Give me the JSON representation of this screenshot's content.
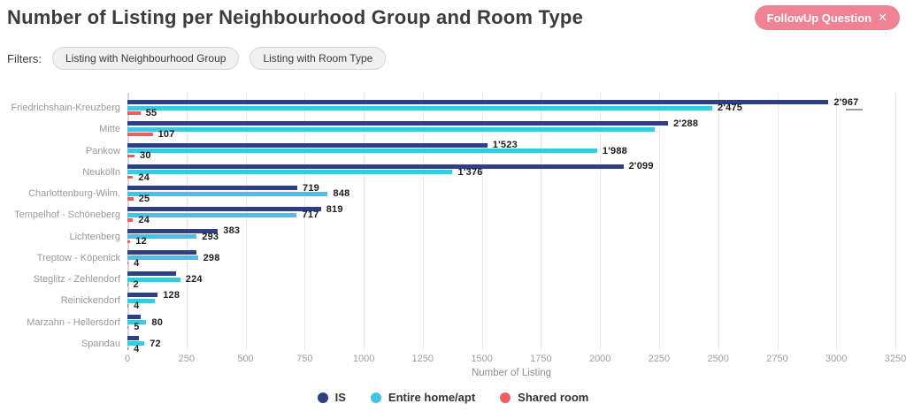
{
  "header": {
    "title": "Number of Listing per Neighbourhood Group and Room Type",
    "followup_button": {
      "label": "FollowUp Question",
      "close_icon": "✕",
      "color": "#ef8294"
    }
  },
  "filters": {
    "label": "Filters:",
    "chips": [
      "Listing with Neighbourhood Group",
      "Listing with Room Type"
    ]
  },
  "chart_data": {
    "type": "bar",
    "orientation": "horizontal",
    "title": "Number of Listing per Neighbourhood Group and Room Type",
    "xlabel": "Number of Listing",
    "ylabel": "",
    "xlim": [
      0,
      3250
    ],
    "xticks": [
      0,
      250,
      500,
      750,
      1000,
      1250,
      1500,
      1750,
      2000,
      2250,
      2500,
      2750,
      3000,
      3250
    ],
    "grid": true,
    "legend_position": "bottom",
    "categories": [
      "Friedrichshain-Kreuzberg",
      "Mitte",
      "Pankow",
      "Neukölln",
      "Charlottenburg-Wilm.",
      "Tempelhof - Schöneberg",
      "Lichtenberg",
      "Treptow - Köpenick",
      "Steglitz - Zehlendorf",
      "Reinickendorf",
      "Marzahn - Hellersdorf",
      "Spandau"
    ],
    "series": [
      {
        "name": "IS",
        "color": "#2d3f85",
        "values": [
          2967,
          2288,
          1523,
          2099,
          719,
          819,
          383,
          292,
          207,
          128,
          58,
          48
        ],
        "labels": [
          "2'967",
          "2'288",
          "1'523",
          "2'099",
          "719",
          "819",
          "383",
          null,
          null,
          "128",
          null,
          null
        ]
      },
      {
        "name": "Entire home/apt",
        "color": "#3fc6e0",
        "values": [
          2475,
          2230,
          1988,
          1376,
          848,
          717,
          293,
          298,
          224,
          115,
          80,
          72
        ],
        "labels": [
          "2'475",
          null,
          "1'988",
          "1'376",
          "848",
          "717",
          "293",
          "298",
          "224",
          null,
          "80",
          "72"
        ]
      },
      {
        "name": "Shared room",
        "color": "#f05c60",
        "values": [
          55,
          107,
          30,
          24,
          25,
          24,
          12,
          4,
          2,
          4,
          5,
          4
        ],
        "labels": [
          "55",
          "107",
          "30",
          "24",
          "25",
          "24",
          "12",
          "4",
          "2",
          "4",
          "5",
          "4"
        ]
      }
    ],
    "label_marks": [
      {
        "category_index": 0,
        "series_index": 0
      }
    ]
  }
}
